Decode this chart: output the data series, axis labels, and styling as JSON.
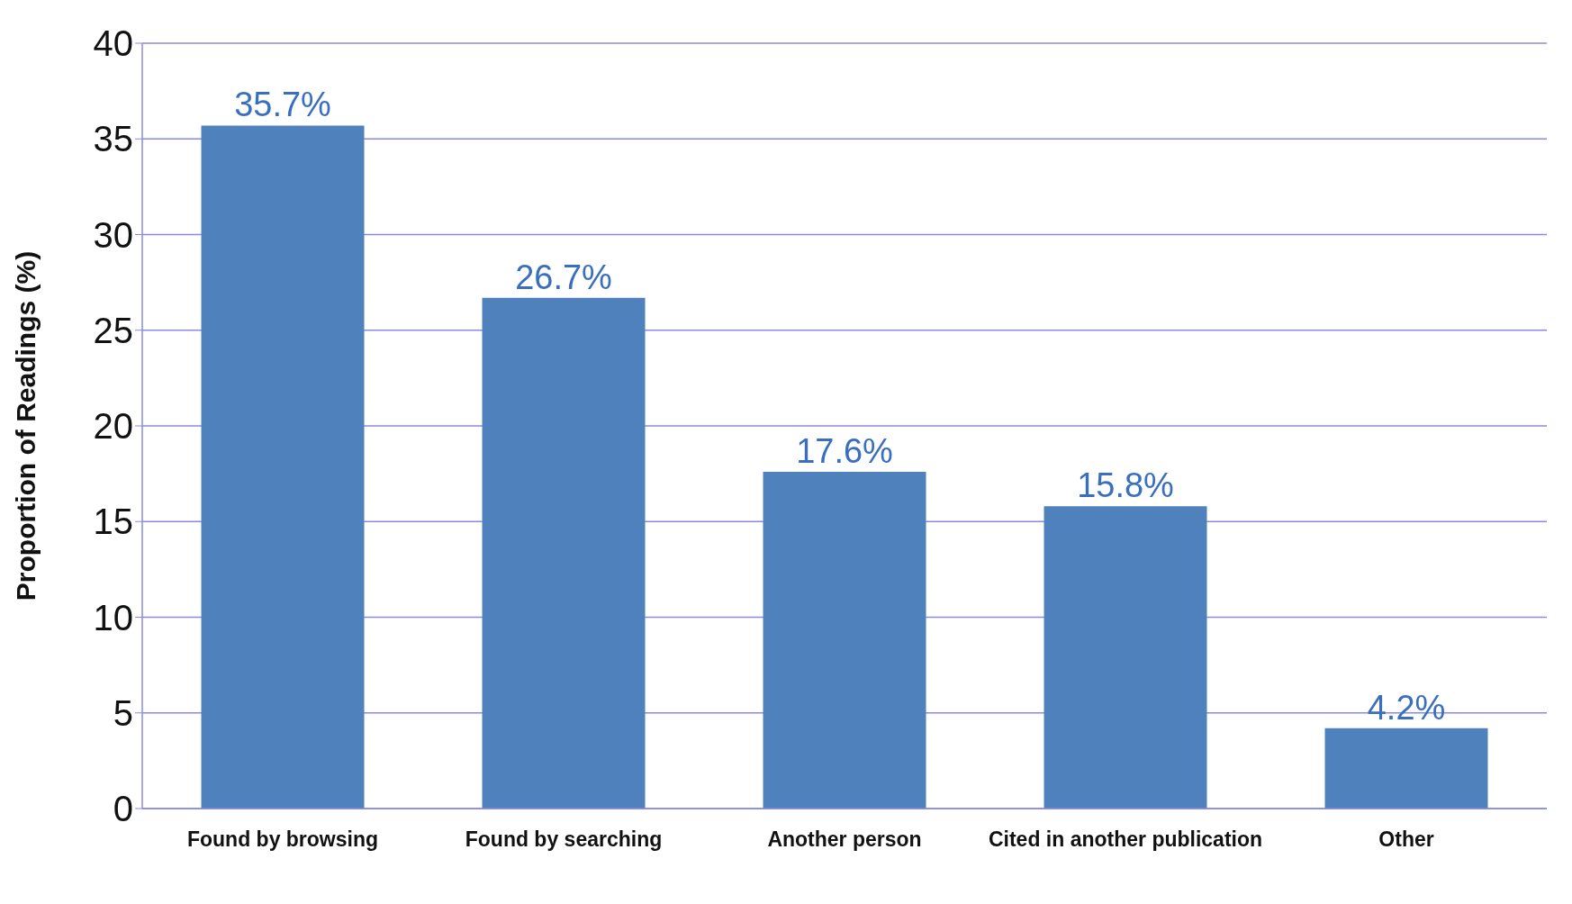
{
  "chart_data": {
    "type": "bar",
    "ylabel": "Proportion of Readings (%)",
    "categories": [
      "Found by browsing",
      "Found by searching",
      "Another person",
      "Cited in another publication",
      "Other"
    ],
    "values": [
      35.7,
      26.7,
      17.6,
      15.8,
      4.2
    ],
    "value_labels": [
      "35.7%",
      "26.7%",
      "17.6%",
      "15.8%",
      "4.2%"
    ],
    "color": "#4f81bd",
    "ylim": [
      0,
      40
    ],
    "yticks": [
      0,
      5,
      10,
      15,
      20,
      25,
      30,
      35,
      40
    ],
    "grid": "y",
    "legend": false
  }
}
